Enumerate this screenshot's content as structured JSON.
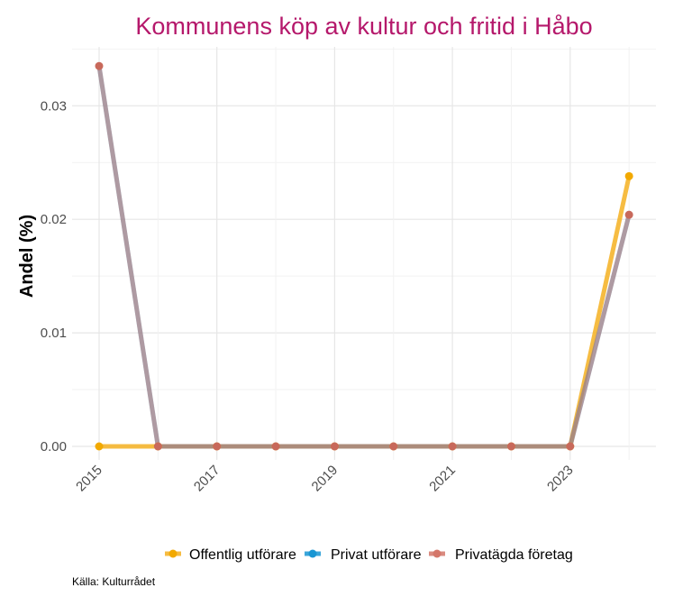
{
  "chart_data": {
    "type": "line",
    "title": "Kommunens köp av kultur och fritid i Håbo",
    "xlabel": "",
    "ylabel": "Andel (%)",
    "x": [
      2015,
      2016,
      2017,
      2018,
      2019,
      2020,
      2021,
      2022,
      2023,
      2024
    ],
    "xticks": [
      "2015",
      "2017",
      "2019",
      "2021",
      "2023"
    ],
    "yticks": [
      "0.00",
      "0.01",
      "0.02",
      "0.03"
    ],
    "xlim": [
      2015,
      2024
    ],
    "ylim": [
      0,
      0.0335
    ],
    "grid": true,
    "legend_position": "bottom",
    "series": [
      {
        "name": "Offentlig utförare",
        "color": "#f5b021",
        "values": [
          0,
          0,
          0,
          0,
          0,
          0,
          0,
          0,
          0,
          0.0238
        ]
      },
      {
        "name": "Privat utförare",
        "color": "#1996d3",
        "values": [
          0.0335,
          0,
          0,
          0,
          0,
          0,
          0,
          0,
          0,
          0.0204
        ]
      },
      {
        "name": "Privatägda företag",
        "color": "#d4776a",
        "values": [
          0.0335,
          0,
          0,
          0,
          0,
          0,
          0,
          0,
          0,
          0.0204
        ]
      }
    ],
    "caption": "Källa: Kulturrådet"
  }
}
